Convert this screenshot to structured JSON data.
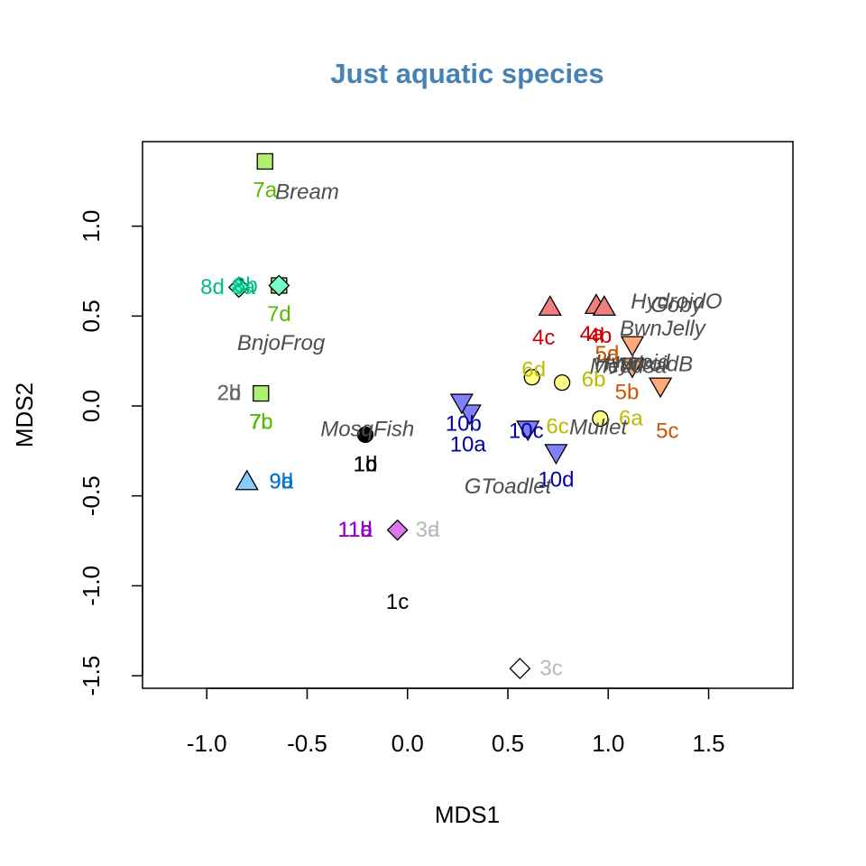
{
  "chart_data": {
    "type": "scatter",
    "title": "Just aquatic species",
    "xlabel": "MDS1",
    "ylabel": "MDS2",
    "xlim": [
      -1.32,
      1.92
    ],
    "ylim": [
      -1.57,
      1.47
    ],
    "xticks": [
      "-1.0",
      "-0.5",
      "0.0",
      "0.5",
      "1.0",
      "1.5"
    ],
    "yticks": [
      "-1.5",
      "-1.0",
      "-0.5",
      "0.0",
      "0.5",
      "1.0"
    ],
    "grid": false,
    "legend": "none",
    "colors": {
      "black": "#000000",
      "grey": "#AAAAAA",
      "lightgrey": "#BBBBBB",
      "darkgrey": "#666666",
      "red": "#CC0000",
      "salmon": "#F08080",
      "orange": "#CC5500",
      "peach": "#FFAA77",
      "olive": "#BBBB00",
      "lightyellow": "#FFFF88",
      "green": "#55BB00",
      "lightgreen": "#B0F070",
      "teal": "#00BB88",
      "aqua": "#77FFCC",
      "blue": "#0077CC",
      "skyblue": "#88CCFF",
      "navy": "#0000AA",
      "periwinkle": "#8080FF",
      "purple": "#9900CC",
      "orchid": "#DD77EE",
      "species": "#4D4D4D"
    },
    "sites": [
      {
        "label": "1b",
        "x": -0.21,
        "y": -0.16,
        "shape": "circle",
        "fill": "#000000",
        "text_color": "#000000"
      },
      {
        "label": "1d",
        "x": -0.21,
        "y": -0.16,
        "shape": "circle",
        "fill": "#000000",
        "text_color": "#000000"
      },
      {
        "label": "1c",
        "x": -0.05,
        "y": -0.69,
        "shape": "diamond",
        "fill": "#DD77EE",
        "text_color": "#000000"
      },
      {
        "label": "2b",
        "x": -0.73,
        "y": 0.07,
        "shape": "square",
        "fill": "#B0F070",
        "text_color": "#666666"
      },
      {
        "label": "2d",
        "x": -0.73,
        "y": 0.07,
        "shape": "square",
        "fill": "#B0F070",
        "text_color": "#666666"
      },
      {
        "label": "3a",
        "x": -0.05,
        "y": -0.69,
        "shape": "diamond",
        "fill": "#FFFFFF",
        "text_color": "#BBBBBB"
      },
      {
        "label": "3d",
        "x": -0.05,
        "y": -0.69,
        "shape": "diamond",
        "fill": "#FFFFFF",
        "text_color": "#BBBBBB"
      },
      {
        "label": "3c",
        "x": 0.56,
        "y": -1.46,
        "shape": "diamond",
        "fill": "#FFFFFF",
        "text_color": "#BBBBBB"
      },
      {
        "label": "4a",
        "x": 0.94,
        "y": 0.56,
        "shape": "triangle-up",
        "fill": "#F08080",
        "text_color": "#CC0000"
      },
      {
        "label": "4b",
        "x": 0.98,
        "y": 0.55,
        "shape": "triangle-up",
        "fill": "#F08080",
        "text_color": "#CC0000"
      },
      {
        "label": "4c",
        "x": 0.71,
        "y": 0.55,
        "shape": "triangle-up",
        "fill": "#F08080",
        "text_color": "#CC0000"
      },
      {
        "label": "5a",
        "x": 1.12,
        "y": 0.34,
        "shape": "triangle-down",
        "fill": "#FFAA77",
        "text_color": "#CC5500"
      },
      {
        "label": "5d",
        "x": 1.12,
        "y": 0.34,
        "shape": "triangle-down",
        "fill": "#FFAA77",
        "text_color": "#CC5500"
      },
      {
        "label": "5b",
        "x": 1.12,
        "y": 0.22,
        "shape": "triangle-down",
        "fill": "#FFAA77",
        "text_color": "#CC5500"
      },
      {
        "label": "5c",
        "x": 1.26,
        "y": 0.11,
        "shape": "triangle-down",
        "fill": "#FFAA77",
        "text_color": "#CC5500"
      },
      {
        "label": "6a",
        "x": 0.96,
        "y": -0.07,
        "shape": "circle",
        "fill": "#FFFF88",
        "text_color": "#BBBB00"
      },
      {
        "label": "6b",
        "x": 0.77,
        "y": 0.13,
        "shape": "circle",
        "fill": "#FFFF88",
        "text_color": "#BBBB00"
      },
      {
        "label": "6c",
        "x": 0.77,
        "y": 0.13,
        "shape": "circle",
        "fill": "#FFFF88",
        "text_color": "#BBBB00"
      },
      {
        "label": "6d",
        "x": 0.62,
        "y": 0.16,
        "shape": "circle",
        "fill": "#FFFF88",
        "text_color": "#BBBB00"
      },
      {
        "label": "7a",
        "x": -0.71,
        "y": 1.36,
        "shape": "square",
        "fill": "#B0F070",
        "text_color": "#55BB00"
      },
      {
        "label": "7b",
        "x": -0.73,
        "y": 0.07,
        "shape": "square",
        "fill": "#B0F070",
        "text_color": "#55BB00"
      },
      {
        "label": "7c",
        "x": -0.73,
        "y": 0.07,
        "shape": "square",
        "fill": "#B0F070",
        "text_color": "#55BB00"
      },
      {
        "label": "7d",
        "x": -0.64,
        "y": 0.67,
        "shape": "square",
        "fill": "#B0F070",
        "text_color": "#55BB00"
      },
      {
        "label": "8a",
        "x": -0.84,
        "y": 0.66,
        "shape": "diamond",
        "fill": "#77FFCC",
        "text_color": "#00BB88"
      },
      {
        "label": "8b",
        "x": -0.64,
        "y": 0.67,
        "shape": "diamond",
        "fill": "#77FFCC",
        "text_color": "#00BB88"
      },
      {
        "label": "8d",
        "x": -0.84,
        "y": 0.66,
        "shape": "diamond",
        "fill": "#77FFCC",
        "text_color": "#00BB88"
      },
      {
        "label": "9a",
        "x": -0.8,
        "y": -0.42,
        "shape": "triangle-up",
        "fill": "#88CCFF",
        "text_color": "#0077CC"
      },
      {
        "label": "9b",
        "x": -0.8,
        "y": -0.42,
        "shape": "triangle-up",
        "fill": "#88CCFF",
        "text_color": "#0077CC"
      },
      {
        "label": "9d",
        "x": -0.8,
        "y": -0.42,
        "shape": "triangle-up",
        "fill": "#88CCFF",
        "text_color": "#0077CC"
      },
      {
        "label": "10a",
        "x": 0.31,
        "y": -0.04,
        "shape": "triangle-down",
        "fill": "#8080FF",
        "text_color": "#0000AA"
      },
      {
        "label": "10b",
        "x": 0.27,
        "y": 0.02,
        "shape": "triangle-down",
        "fill": "#8080FF",
        "text_color": "#0000AA"
      },
      {
        "label": "10c",
        "x": 0.6,
        "y": -0.13,
        "shape": "triangle-down",
        "fill": "#8080FF",
        "text_color": "#0000AA"
      },
      {
        "label": "10d",
        "x": 0.74,
        "y": -0.26,
        "shape": "triangle-down",
        "fill": "#8080FF",
        "text_color": "#0000AA"
      },
      {
        "label": "11a",
        "x": -0.05,
        "y": -0.69,
        "shape": "diamond",
        "fill": "#DD77EE",
        "text_color": "#9900CC"
      },
      {
        "label": "11b",
        "x": -0.05,
        "y": -0.69,
        "shape": "diamond",
        "fill": "#DD77EE",
        "text_color": "#9900CC"
      },
      {
        "label": "11d",
        "x": -0.05,
        "y": -0.69,
        "shape": "diamond",
        "fill": "#DD77EE",
        "text_color": "#9900CC"
      }
    ],
    "species": [
      {
        "name": "Bream",
        "x": -0.5,
        "y": 1.19
      },
      {
        "name": "BnjoFrog",
        "x": -0.63,
        "y": 0.35
      },
      {
        "name": "MosqFish",
        "x": -0.2,
        "y": -0.13
      },
      {
        "name": "GToadlet",
        "x": 0.5,
        "y": -0.45
      },
      {
        "name": "Mullet",
        "x": 0.95,
        "y": -0.12
      },
      {
        "name": "BwnJelly",
        "x": 1.27,
        "y": 0.43
      },
      {
        "name": "HydroidO",
        "x": 1.34,
        "y": 0.58
      },
      {
        "name": "Goby",
        "x": 1.34,
        "y": 0.56
      },
      {
        "name": "Hydroid",
        "x": 1.12,
        "y": 0.24
      },
      {
        "name": "HydroidB",
        "x": 1.2,
        "y": 0.23
      },
      {
        "name": "Medusa",
        "x": 1.1,
        "y": 0.22
      }
    ]
  }
}
